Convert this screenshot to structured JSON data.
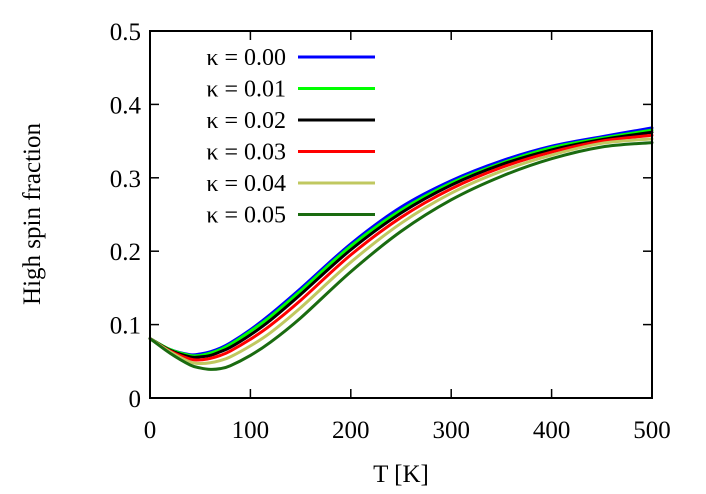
{
  "chart_data": {
    "type": "line",
    "xlabel": "T [K]",
    "ylabel": "High spin fraction",
    "xlim": [
      0,
      500
    ],
    "ylim": [
      0,
      0.5
    ],
    "x_ticks": [
      "0",
      "100",
      "200",
      "300",
      "400",
      "500"
    ],
    "y_ticks": [
      "0",
      "0.1",
      "0.2",
      "0.3",
      "0.4",
      "0.5"
    ],
    "x_tick_values": [
      0,
      100,
      200,
      300,
      400,
      500
    ],
    "y_tick_values": [
      0,
      0.1,
      0.2,
      0.3,
      0.4,
      0.5
    ],
    "grid": false,
    "legend_position": "top-left",
    "x": [
      0,
      20,
      40,
      50,
      60,
      70,
      80,
      100,
      120,
      150,
      200,
      250,
      300,
      350,
      400,
      450,
      500
    ],
    "series": [
      {
        "name": "κ = 0.00",
        "color": "#0000ff",
        "values": [
          0.081,
          0.066,
          0.059,
          0.06,
          0.063,
          0.068,
          0.075,
          0.093,
          0.114,
          0.149,
          0.21,
          0.26,
          0.296,
          0.323,
          0.343,
          0.356,
          0.368
        ]
      },
      {
        "name": "κ = 0.01",
        "color": "#00ff00",
        "values": [
          0.081,
          0.066,
          0.058,
          0.058,
          0.061,
          0.066,
          0.073,
          0.091,
          0.111,
          0.146,
          0.207,
          0.256,
          0.293,
          0.32,
          0.341,
          0.354,
          0.365
        ]
      },
      {
        "name": "κ = 0.02",
        "color": "#000000",
        "values": [
          0.081,
          0.065,
          0.056,
          0.056,
          0.058,
          0.063,
          0.069,
          0.086,
          0.106,
          0.141,
          0.202,
          0.252,
          0.29,
          0.318,
          0.338,
          0.352,
          0.362
        ]
      },
      {
        "name": "κ = 0.03",
        "color": "#ff0000",
        "values": [
          0.081,
          0.064,
          0.053,
          0.052,
          0.054,
          0.058,
          0.064,
          0.08,
          0.099,
          0.133,
          0.195,
          0.246,
          0.285,
          0.314,
          0.335,
          0.35,
          0.358
        ]
      },
      {
        "name": "κ = 0.04",
        "color": "#c0c860",
        "values": [
          0.081,
          0.063,
          0.049,
          0.047,
          0.048,
          0.051,
          0.056,
          0.071,
          0.089,
          0.123,
          0.185,
          0.238,
          0.279,
          0.309,
          0.331,
          0.347,
          0.353
        ]
      },
      {
        "name": "κ = 0.05",
        "color": "#1a6b10",
        "values": [
          0.081,
          0.061,
          0.045,
          0.041,
          0.039,
          0.04,
          0.044,
          0.058,
          0.076,
          0.109,
          0.172,
          0.227,
          0.27,
          0.302,
          0.326,
          0.342,
          0.348
        ]
      }
    ]
  }
}
